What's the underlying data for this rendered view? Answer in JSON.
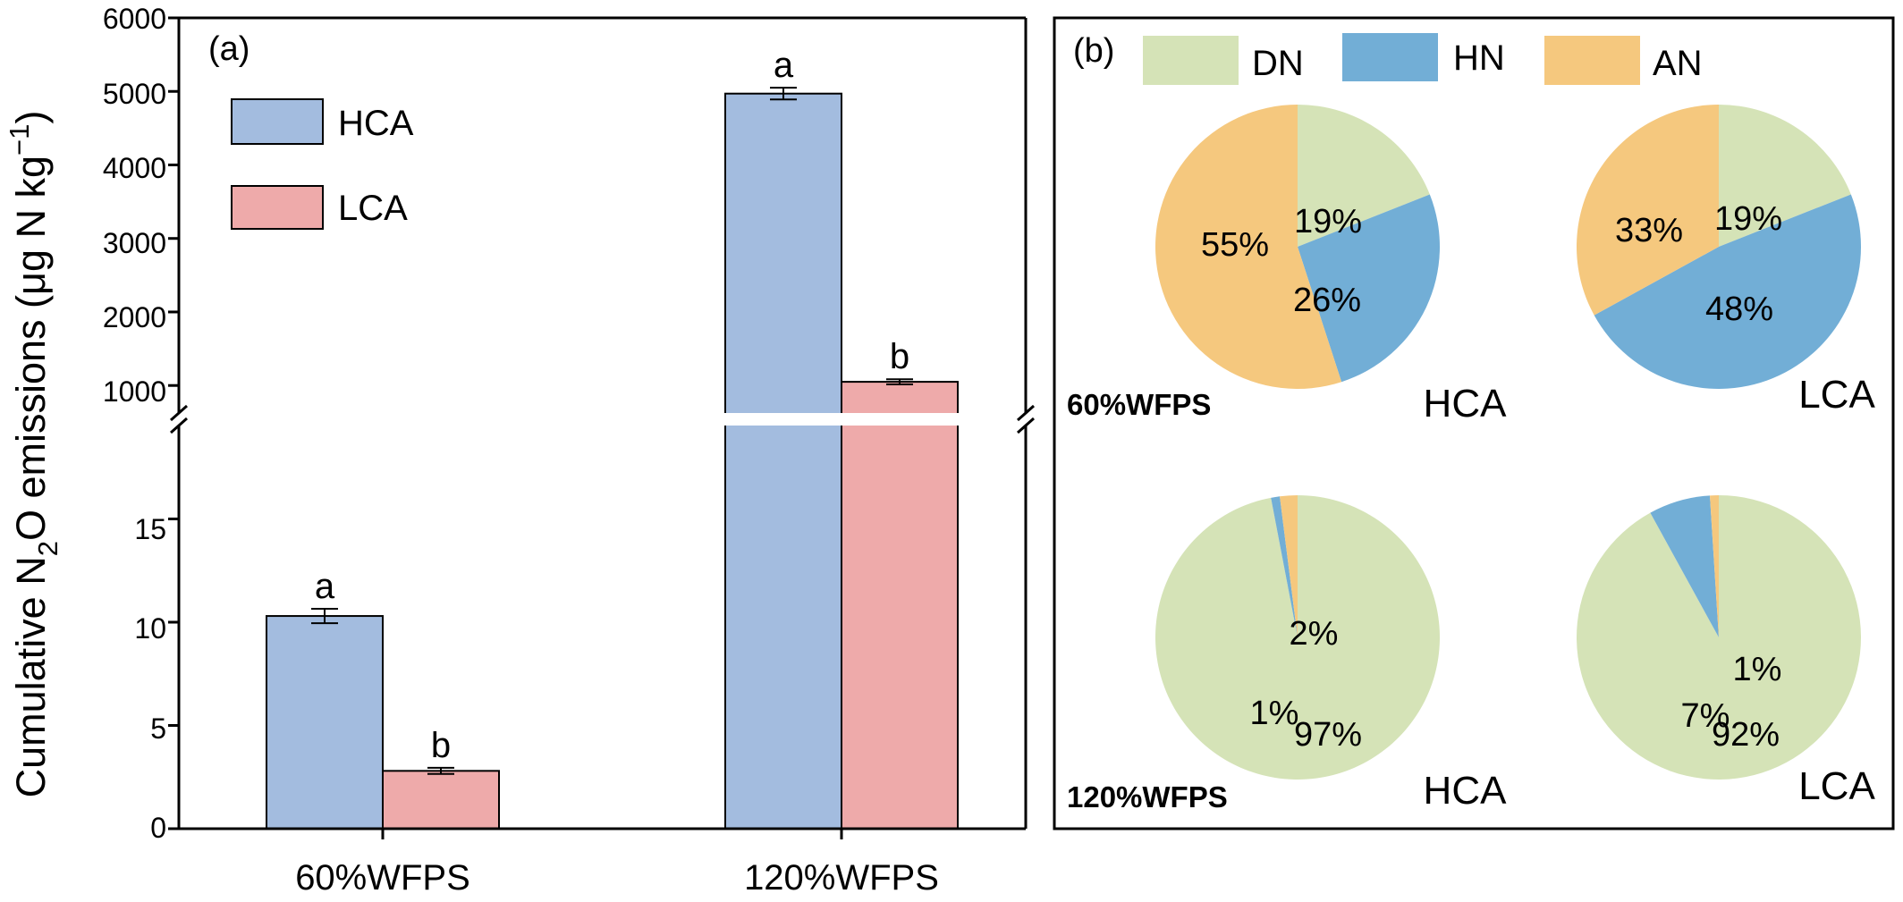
{
  "panel_a": {
    "label": "(a)",
    "y_label_pre": "Cumulative N",
    "y_label_sub": "2",
    "y_label_mid": "O emissions (μg N kg",
    "y_label_sup": "−1",
    "y_label_post": ")",
    "legend": [
      "HCA",
      "LCA"
    ],
    "upper_ticks": [
      "1000",
      "2000",
      "3000",
      "4000",
      "5000",
      "6000"
    ],
    "lower_ticks": [
      "0",
      "5",
      "10",
      "15"
    ]
  },
  "panel_b": {
    "label": "(b)",
    "legend": [
      "DN",
      "HN",
      "AN"
    ],
    "row_labels": [
      "60%WFPS",
      "120%WFPS"
    ],
    "col_labels": [
      "HCA",
      "LCA"
    ]
  },
  "colors": {
    "HCA": "#a3bcdf",
    "LCA": "#eeaaaa",
    "DN": "#d5e3b7",
    "HN": "#72aed6",
    "AN": "#f5c87e"
  },
  "chart_data": [
    {
      "type": "bar",
      "title": "(a)",
      "ylabel": "Cumulative N2O emissions (μg N kg−1)",
      "y_axis": "broken",
      "ylim_lower": [
        0,
        20
      ],
      "ylim_upper": [
        650,
        6000
      ],
      "categories": [
        "60%WFPS",
        "120%WFPS"
      ],
      "series": [
        {
          "name": "HCA",
          "values": [
            10.3,
            4970
          ],
          "errors": [
            0.35,
            80
          ],
          "letters": [
            "a",
            "a"
          ]
        },
        {
          "name": "LCA",
          "values": [
            2.8,
            1050
          ],
          "errors": [
            0.15,
            35
          ],
          "letters": [
            "b",
            "b"
          ]
        }
      ]
    },
    {
      "type": "pie",
      "title": "(b)",
      "legend": [
        "DN",
        "HN",
        "AN"
      ],
      "pies": [
        {
          "row": "60%WFPS",
          "col": "HCA",
          "values": {
            "DN": 19,
            "HN": 26,
            "AN": 55
          },
          "labels": {
            "DN": "19%",
            "HN": "26%",
            "AN": "55%"
          }
        },
        {
          "row": "60%WFPS",
          "col": "LCA",
          "values": {
            "DN": 19,
            "HN": 48,
            "AN": 33
          },
          "labels": {
            "DN": "19%",
            "HN": "48%",
            "AN": "33%"
          }
        },
        {
          "row": "120%WFPS",
          "col": "HCA",
          "values": {
            "DN": 97,
            "HN": 1,
            "AN": 2
          },
          "labels": {
            "DN": "97%",
            "HN": "1%",
            "AN": "2%"
          }
        },
        {
          "row": "120%WFPS",
          "col": "LCA",
          "values": {
            "DN": 92,
            "HN": 7,
            "AN": 1
          },
          "labels": {
            "DN": "92%",
            "HN": "7%",
            "AN": "1%"
          }
        }
      ]
    }
  ]
}
